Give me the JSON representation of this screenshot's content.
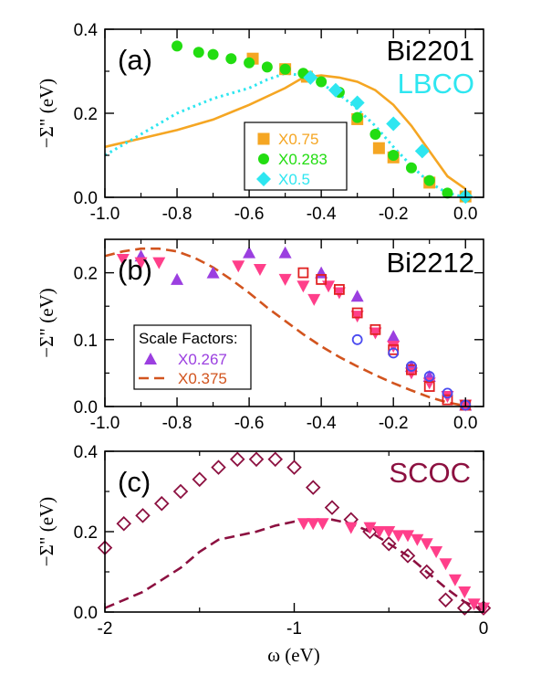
{
  "colors": {
    "orange": "#f5a623",
    "green": "#22dd11",
    "cyan": "#2ee6f0",
    "purple": "#9b3fe0",
    "pink": "#ff3f8a",
    "red": "#e02020",
    "blue": "#4a4af0",
    "brown": "#d2541e",
    "maroon": "#8c1040"
  },
  "chart_data": [
    {
      "type": "scatter",
      "panel_label": "(a)",
      "material_labels": [
        "Bi2201",
        "LBCO"
      ],
      "ylabel": "−Σ\" (eV)",
      "xlim": [
        -1.0,
        0.05
      ],
      "ylim": [
        0,
        0.4
      ],
      "xticks": [
        "-1.0",
        "-0.8",
        "-0.6",
        "-0.4",
        "-0.2",
        "0.0"
      ],
      "yticks": [
        "0.0",
        "0.2",
        "0.4"
      ],
      "legend": [
        "X0.75",
        "X0.283",
        "X0.5"
      ],
      "series": [
        {
          "marker": "square",
          "color": "orange",
          "x": [
            -0.59,
            -0.5,
            -0.44,
            -0.3,
            -0.24,
            -0.2,
            -0.1,
            0.0
          ],
          "y": [
            0.33,
            0.305,
            0.287,
            0.186,
            0.117,
            0.095,
            0.035,
            0.002
          ]
        },
        {
          "marker": "circle",
          "color": "green",
          "x": [
            -0.8,
            -0.74,
            -0.7,
            -0.65,
            -0.6,
            -0.55,
            -0.5,
            -0.45,
            -0.4,
            -0.35,
            -0.3,
            -0.25,
            -0.2,
            -0.15,
            -0.1,
            -0.05,
            0.0
          ],
          "y": [
            0.36,
            0.345,
            0.34,
            0.33,
            0.32,
            0.31,
            0.305,
            0.295,
            0.275,
            0.25,
            0.19,
            0.15,
            0.1,
            0.07,
            0.04,
            0.01,
            0.002
          ]
        },
        {
          "marker": "diamond",
          "color": "cyan",
          "x": [
            -0.43,
            -0.36,
            -0.3,
            -0.2,
            -0.12,
            0.0
          ],
          "y": [
            0.285,
            0.255,
            0.225,
            0.175,
            0.11,
            0.002
          ]
        },
        {
          "line": "solid",
          "color": "orange",
          "x": [
            -1.0,
            -0.9,
            -0.8,
            -0.7,
            -0.6,
            -0.5,
            -0.45,
            -0.4,
            -0.35,
            -0.3,
            -0.25,
            -0.2,
            -0.15,
            -0.1,
            -0.05,
            0.0
          ],
          "y": [
            0.12,
            0.14,
            0.16,
            0.185,
            0.22,
            0.26,
            0.285,
            0.29,
            0.285,
            0.275,
            0.255,
            0.22,
            0.17,
            0.11,
            0.05,
            0.02
          ]
        },
        {
          "line": "dotted",
          "color": "cyan",
          "x": [
            -1.0,
            -0.9,
            -0.8,
            -0.7,
            -0.6,
            -0.55,
            -0.5,
            -0.45,
            -0.4,
            -0.35,
            -0.3,
            -0.25,
            -0.2,
            -0.15,
            -0.1,
            -0.05,
            0.0
          ],
          "y": [
            0.1,
            0.15,
            0.2,
            0.235,
            0.26,
            0.28,
            0.295,
            0.29,
            0.27,
            0.245,
            0.21,
            0.17,
            0.12,
            0.075,
            0.035,
            0.01,
            0.0
          ]
        }
      ]
    },
    {
      "type": "scatter",
      "panel_label": "(b)",
      "material_labels": [
        "Bi2212"
      ],
      "ylabel": "−Σ\" (eV)",
      "xlim": [
        -1.0,
        0.05
      ],
      "ylim": [
        0,
        0.25
      ],
      "xticks": [
        "-1.0",
        "-0.8",
        "-0.6",
        "-0.4",
        "-0.2",
        "0.0"
      ],
      "yticks": [
        "0.0",
        "0.1",
        "0.2"
      ],
      "legend_title": "Scale Factors:",
      "legend": [
        "X0.267",
        "X0.375"
      ],
      "series": [
        {
          "marker": "triangle-up",
          "color": "purple",
          "x": [
            -0.9,
            -0.8,
            -0.7,
            -0.6,
            -0.5,
            -0.4,
            -0.3,
            -0.2,
            -0.15,
            -0.1,
            0.0
          ],
          "y": [
            0.225,
            0.19,
            0.2,
            0.23,
            0.23,
            0.2,
            0.165,
            0.105,
            0.06,
            0.045,
            0.002
          ]
        },
        {
          "marker": "triangle-down",
          "color": "pink",
          "x": [
            -0.95,
            -0.9,
            -0.85,
            -0.63,
            -0.57,
            -0.5,
            -0.45,
            -0.42,
            -0.38,
            -0.35,
            -0.3,
            -0.25,
            -0.2,
            -0.15,
            -0.1,
            -0.05,
            0.0
          ],
          "y": [
            0.22,
            0.215,
            0.215,
            0.21,
            0.205,
            0.19,
            0.18,
            0.16,
            0.18,
            0.17,
            0.135,
            0.11,
            0.09,
            0.05,
            0.035,
            0.015,
            0.002
          ]
        },
        {
          "marker": "square-open",
          "color": "red",
          "x": [
            -0.45,
            -0.4,
            -0.35,
            -0.3,
            -0.25,
            -0.2,
            -0.15,
            -0.1,
            -0.05,
            0.0
          ],
          "y": [
            0.2,
            0.19,
            0.175,
            0.14,
            0.115,
            0.085,
            0.055,
            0.03,
            0.01,
            0.002
          ]
        },
        {
          "marker": "circle-open",
          "color": "blue",
          "x": [
            -0.3,
            -0.2,
            -0.15,
            -0.1,
            -0.05,
            0.0
          ],
          "y": [
            0.1,
            0.08,
            0.06,
            0.045,
            0.02,
            0.002
          ]
        },
        {
          "line": "dashed",
          "color": "brown",
          "x": [
            -1.0,
            -0.95,
            -0.9,
            -0.85,
            -0.8,
            -0.75,
            -0.7,
            -0.65,
            -0.6,
            -0.55,
            -0.5,
            -0.45,
            -0.4,
            -0.35,
            -0.3,
            -0.25,
            -0.2,
            -0.15,
            -0.1,
            -0.05,
            0.0
          ],
          "y": [
            0.225,
            0.232,
            0.236,
            0.236,
            0.232,
            0.222,
            0.208,
            0.19,
            0.17,
            0.148,
            0.128,
            0.108,
            0.09,
            0.074,
            0.06,
            0.047,
            0.035,
            0.024,
            0.014,
            0.006,
            0.001
          ]
        }
      ]
    },
    {
      "type": "scatter",
      "panel_label": "(c)",
      "material_labels": [
        "SCOC"
      ],
      "ylabel": "−Σ\" (eV)",
      "xlabel": "ω (eV)",
      "xlim": [
        -2.0,
        0.0
      ],
      "ylim": [
        0,
        0.4
      ],
      "xticks": [
        "-2",
        "-1",
        "0"
      ],
      "yticks": [
        "0.0",
        "0.2",
        "0.4"
      ],
      "series": [
        {
          "marker": "diamond-open",
          "color": "maroon",
          "x": [
            -2.0,
            -1.9,
            -1.8,
            -1.7,
            -1.6,
            -1.5,
            -1.4,
            -1.3,
            -1.2,
            -1.1,
            -1.0,
            -0.9,
            -0.8,
            -0.7,
            -0.6,
            -0.5,
            -0.4,
            -0.3,
            -0.2,
            -0.1,
            0.0
          ],
          "y": [
            0.16,
            0.22,
            0.24,
            0.27,
            0.3,
            0.33,
            0.36,
            0.38,
            0.38,
            0.38,
            0.36,
            0.31,
            0.26,
            0.23,
            0.2,
            0.17,
            0.14,
            0.1,
            0.03,
            0.01,
            0.01
          ]
        },
        {
          "marker": "triangle-down",
          "color": "pink",
          "x": [
            -0.95,
            -0.9,
            -0.85,
            -0.7,
            -0.6,
            -0.55,
            -0.5,
            -0.45,
            -0.4,
            -0.35,
            -0.3,
            -0.25,
            -0.2,
            -0.15,
            -0.1,
            -0.05,
            0.0
          ],
          "y": [
            0.22,
            0.22,
            0.22,
            0.21,
            0.21,
            0.2,
            0.2,
            0.19,
            0.19,
            0.18,
            0.17,
            0.15,
            0.12,
            0.08,
            0.05,
            0.02,
            0.01
          ]
        },
        {
          "line": "dashed",
          "color": "maroon",
          "x": [
            -2.0,
            -1.9,
            -1.8,
            -1.7,
            -1.6,
            -1.5,
            -1.4,
            -1.3,
            -1.2,
            -1.1,
            -1.0,
            -0.9,
            -0.8,
            -0.7,
            -0.6,
            -0.5,
            -0.4,
            -0.3,
            -0.2,
            -0.1,
            0.0
          ],
          "y": [
            0.01,
            0.03,
            0.05,
            0.08,
            0.11,
            0.15,
            0.18,
            0.19,
            0.2,
            0.215,
            0.225,
            0.23,
            0.23,
            0.22,
            0.2,
            0.17,
            0.14,
            0.1,
            0.06,
            0.025,
            0.005
          ]
        }
      ]
    }
  ]
}
